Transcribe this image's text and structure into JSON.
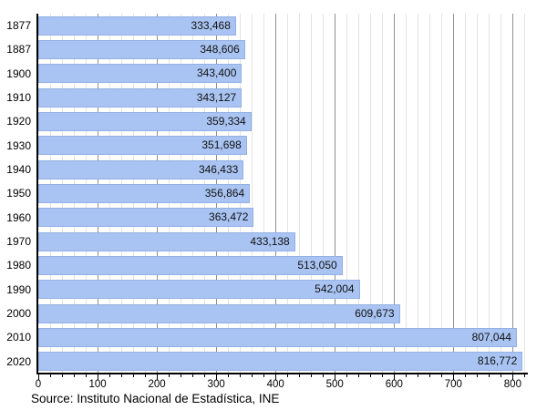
{
  "chart_data": {
    "type": "bar",
    "orientation": "horizontal",
    "title": "",
    "xlabel": "",
    "ylabel": "",
    "categories": [
      "1877",
      "1887",
      "1900",
      "1910",
      "1920",
      "1930",
      "1940",
      "1950",
      "1960",
      "1970",
      "1980",
      "1990",
      "2000",
      "2010",
      "2020"
    ],
    "values": [
      333468,
      348606,
      343400,
      343127,
      359334,
      351698,
      346433,
      356864,
      363472,
      433138,
      513050,
      542004,
      609673,
      807044,
      816772
    ],
    "value_labels": [
      "333,468",
      "348,606",
      "343,400",
      "343,127",
      "359,334",
      "351,698",
      "346,433",
      "356,864",
      "363,472",
      "433,138",
      "513,050",
      "542,004",
      "609,673",
      "807,044",
      "816,772"
    ],
    "axis_unit": "thousands",
    "x_ticks": [
      0,
      100,
      200,
      300,
      400,
      500,
      600,
      700,
      800
    ],
    "x_minor_step": 20,
    "x_max": 824,
    "grid": "on",
    "legend": "none",
    "source": "Source: Instituto Nacional de Estadística, INE",
    "colors": {
      "bar": "#a9c4f2",
      "grid_major": "#909090",
      "grid_minor": "#e3e3e3",
      "axis": "#000000",
      "text": "#000000"
    }
  }
}
